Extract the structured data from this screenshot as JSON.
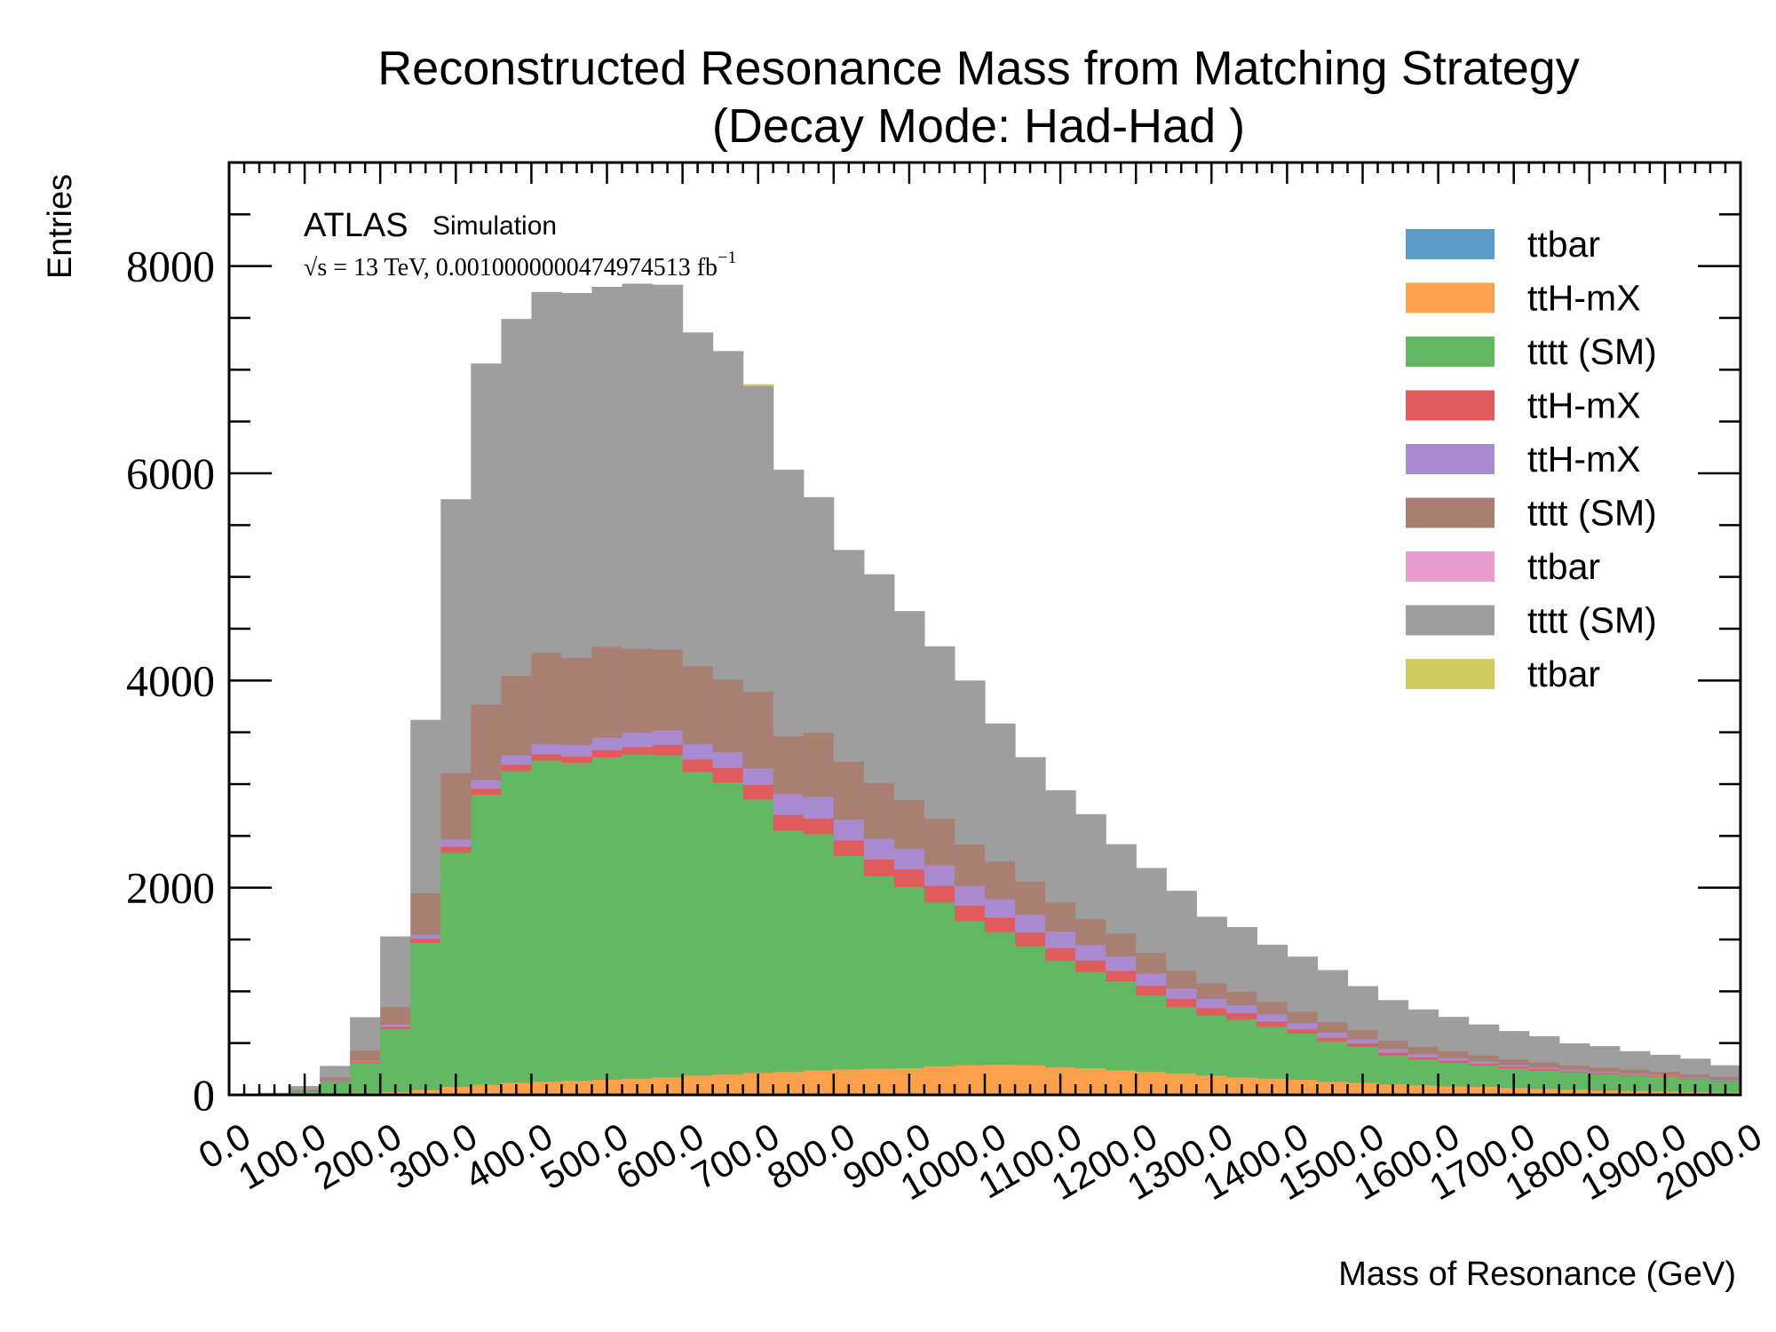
{
  "chart_data": {
    "type": "bar",
    "stacked": true,
    "title_line1": "Reconstructed Resonance Mass from Matching Strategy",
    "title_line2": "(Decay Mode: Had-Had )",
    "xlabel": "Mass of Resonance (GeV)",
    "ylabel": "Entries",
    "xlim": [
      0,
      2000
    ],
    "ylim": [
      0,
      9000
    ],
    "bin_width": 40,
    "bin_start": 0,
    "x_ticks": [
      0,
      100,
      200,
      300,
      400,
      500,
      600,
      700,
      800,
      900,
      1000,
      1100,
      1200,
      1300,
      1400,
      1500,
      1600,
      1700,
      1800,
      1900,
      2000
    ],
    "x_tick_labels": [
      "0.0",
      "100.0",
      "200.0",
      "300.0",
      "400.0",
      "500.0",
      "600.0",
      "700.0",
      "800.0",
      "900.0",
      "1000.0",
      "1100.0",
      "1200.0",
      "1300.0",
      "1400.0",
      "1500.0",
      "1600.0",
      "1700.0",
      "1800.0",
      "1900.0",
      "2000.0"
    ],
    "y_ticks": [
      0,
      2000,
      4000,
      6000,
      8000
    ],
    "y_tick_labels": [
      "0",
      "2000",
      "4000",
      "6000",
      "8000"
    ],
    "grid": false,
    "legend_position": "top-right",
    "annotation": {
      "experiment": "ATLAS",
      "label": "Simulation",
      "energy": "√s = 13 TeV, 0.0010000000474974513 fb",
      "energy_sup": "−1"
    },
    "series": [
      {
        "name": "ttbar",
        "color": "#5b9bc8",
        "values": [
          0,
          0,
          0,
          0,
          0,
          0,
          0,
          0,
          0,
          0,
          0,
          0,
          0,
          0,
          0,
          0,
          0,
          0,
          0,
          0,
          0,
          0,
          0,
          0,
          0,
          0,
          0,
          0,
          0,
          0,
          0,
          0,
          0,
          0,
          0,
          0,
          0,
          0,
          0,
          0,
          0,
          0,
          0,
          0,
          0,
          0,
          0,
          0,
          0,
          0
        ]
      },
      {
        "name": "ttH-mX",
        "color": "#fca04b",
        "values": [
          0,
          0,
          5,
          10,
          20,
          30,
          50,
          80,
          100,
          120,
          130,
          140,
          150,
          160,
          170,
          190,
          200,
          215,
          225,
          240,
          250,
          255,
          260,
          280,
          290,
          295,
          290,
          270,
          260,
          240,
          225,
          210,
          190,
          170,
          160,
          150,
          130,
          120,
          105,
          95,
          85,
          80,
          70,
          60,
          55,
          45,
          40,
          35,
          30,
          25
        ]
      },
      {
        "name": "tttt (SM)",
        "color": "#62b863",
        "values": [
          0,
          0,
          30,
          120,
          290,
          610,
          1420,
          2260,
          2800,
          3010,
          3100,
          3070,
          3110,
          3130,
          3110,
          2930,
          2820,
          2640,
          2330,
          2280,
          2060,
          1860,
          1750,
          1580,
          1390,
          1280,
          1150,
          1030,
          930,
          860,
          740,
          640,
          580,
          560,
          500,
          445,
          390,
          350,
          280,
          250,
          230,
          210,
          190,
          180,
          165,
          160,
          150,
          140,
          125,
          110
        ]
      },
      {
        "name": "ttH-mX",
        "color": "#e05c5c",
        "values": [
          0,
          0,
          0,
          5,
          10,
          20,
          40,
          60,
          60,
          60,
          60,
          60,
          70,
          70,
          100,
          120,
          140,
          140,
          150,
          150,
          150,
          160,
          170,
          160,
          150,
          140,
          130,
          120,
          110,
          100,
          90,
          80,
          70,
          60,
          50,
          40,
          35,
          30,
          25,
          20,
          18,
          15,
          13,
          11,
          10,
          9,
          8,
          7,
          6,
          5
        ]
      },
      {
        "name": "ttH-mX",
        "color": "#a98bd0",
        "values": [
          0,
          0,
          0,
          5,
          10,
          20,
          40,
          70,
          80,
          90,
          100,
          110,
          120,
          140,
          140,
          150,
          150,
          160,
          200,
          210,
          200,
          200,
          200,
          200,
          190,
          180,
          170,
          160,
          150,
          140,
          120,
          100,
          90,
          80,
          70,
          60,
          50,
          40,
          35,
          30,
          25,
          20,
          18,
          15,
          13,
          12,
          11,
          10,
          9,
          8
        ]
      },
      {
        "name": "tttt (SM)",
        "color": "#a97f74",
        "values": [
          0,
          0,
          15,
          30,
          100,
          170,
          400,
          640,
          730,
          770,
          880,
          840,
          880,
          810,
          780,
          750,
          700,
          740,
          560,
          620,
          560,
          540,
          470,
          450,
          400,
          360,
          320,
          280,
          250,
          220,
          200,
          170,
          150,
          130,
          120,
          110,
          100,
          90,
          80,
          70,
          65,
          60,
          55,
          50,
          45,
          40,
          38,
          35,
          30,
          28
        ]
      },
      {
        "name": "ttbar",
        "color": "#e89ccd",
        "values": [
          0,
          0,
          0,
          0,
          0,
          0,
          0,
          0,
          0,
          0,
          0,
          0,
          0,
          0,
          0,
          0,
          0,
          0,
          0,
          0,
          0,
          0,
          0,
          0,
          0,
          0,
          0,
          0,
          0,
          0,
          0,
          0,
          0,
          0,
          0,
          0,
          0,
          0,
          0,
          0,
          0,
          0,
          0,
          0,
          0,
          0,
          0,
          0,
          0,
          0
        ]
      },
      {
        "name": "tttt (SM)",
        "color": "#9e9e9e",
        "values": [
          0,
          20,
          35,
          110,
          320,
          680,
          1670,
          2640,
          3290,
          3440,
          3480,
          3520,
          3470,
          3520,
          3520,
          3220,
          3170,
          2950,
          2570,
          2270,
          2040,
          2010,
          1820,
          1660,
          1580,
          1330,
          1200,
          1080,
          1010,
          860,
          815,
          770,
          640,
          620,
          550,
          530,
          500,
          420,
          390,
          360,
          330,
          295,
          270,
          250,
          210,
          205,
          175,
          160,
          150,
          110
        ]
      },
      {
        "name": "ttbar",
        "color": "#cdcc5c",
        "values": [
          0,
          0,
          0,
          0,
          0,
          0,
          0,
          0,
          0,
          0,
          0,
          0,
          0,
          0,
          0,
          0,
          0,
          15,
          0,
          0,
          0,
          0,
          0,
          0,
          0,
          0,
          0,
          0,
          0,
          0,
          0,
          0,
          0,
          0,
          0,
          0,
          0,
          0,
          0,
          0,
          0,
          0,
          0,
          0,
          0,
          0,
          0,
          0,
          0,
          0
        ]
      }
    ]
  }
}
